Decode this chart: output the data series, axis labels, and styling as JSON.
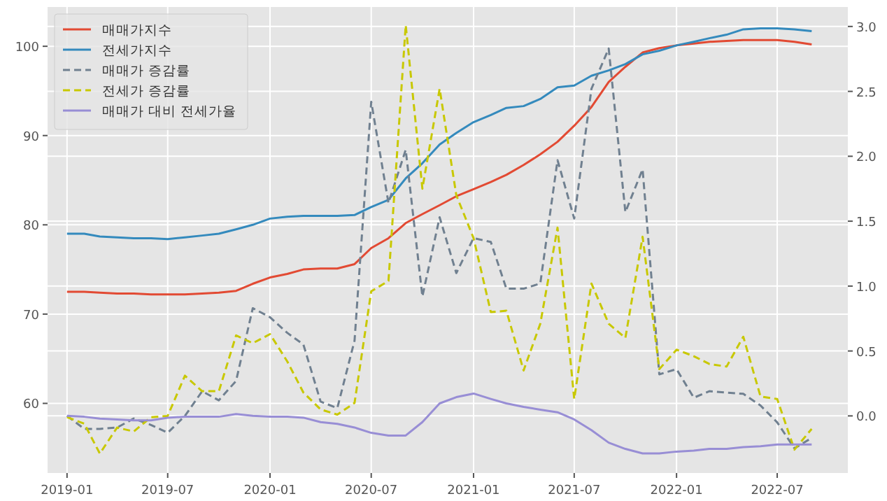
{
  "chart_data": {
    "type": "line",
    "x": [
      "2019-01",
      "2019-02",
      "2019-03",
      "2019-04",
      "2019-05",
      "2019-06",
      "2019-07",
      "2019-08",
      "2019-09",
      "2019-10",
      "2019-11",
      "2019-12",
      "2020-01",
      "2020-02",
      "2020-03",
      "2020-04",
      "2020-05",
      "2020-06",
      "2020-07",
      "2020-08",
      "2020-09",
      "2020-10",
      "2020-11",
      "2020-12",
      "2021-01",
      "2021-02",
      "2021-03",
      "2021-04",
      "2021-05",
      "2021-06",
      "2021-07",
      "2021-08",
      "2021-09",
      "2021-10",
      "2021-11",
      "2021-12",
      "2022-01",
      "2022-02",
      "2022-03",
      "2022-04",
      "2022-05",
      "2022-06",
      "2022-07",
      "2022-08",
      "2022-09"
    ],
    "xlim": [
      "2018-11-27",
      "2022-11-05"
    ],
    "xticks": [
      {
        "value": "2019-01",
        "label": "2019-01"
      },
      {
        "value": "2019-07",
        "label": "2019-07"
      },
      {
        "value": "2020-01",
        "label": "2020-01"
      },
      {
        "value": "2020-07",
        "label": "2020-07"
      },
      {
        "value": "2021-01",
        "label": "2021-01"
      },
      {
        "value": "2021-07",
        "label": "2021-07"
      },
      {
        "value": "2022-01",
        "label": "2022-01"
      },
      {
        "value": "2022-07",
        "label": "2022-07"
      }
    ],
    "ylim": [
      52.2,
      104.4
    ],
    "yticks": [
      60,
      70,
      80,
      90,
      100
    ],
    "y2lim": [
      -0.44,
      3.15
    ],
    "y2ticks": [
      {
        "value": 0,
        "label": "0.0"
      },
      {
        "value": 0.5,
        "label": "0.5"
      },
      {
        "value": 1,
        "label": "1.0"
      },
      {
        "value": 1.5,
        "label": "1.5"
      },
      {
        "value": 2,
        "label": "2.0"
      },
      {
        "value": 2.5,
        "label": "2.5"
      },
      {
        "value": 3,
        "label": "3.0"
      }
    ],
    "grid": true,
    "legend": "top left",
    "series": [
      {
        "name": "매매가지수",
        "color": "#e24a33",
        "line_style": "solid",
        "values": [
          72.5,
          72.5,
          72.4,
          72.3,
          72.3,
          72.2,
          72.2,
          72.2,
          72.3,
          72.4,
          72.6,
          73.4,
          74.1,
          74.5,
          75.0,
          75.1,
          75.1,
          75.6,
          77.4,
          78.5,
          80.2,
          81.2,
          82.2,
          83.2,
          84.0,
          84.8,
          85.6,
          86.7,
          87.9,
          89.3,
          91.1,
          93.2,
          96.0,
          97.7,
          99.3,
          99.8,
          100.1,
          100.3,
          100.5,
          100.6,
          100.7,
          100.7,
          100.7,
          100.5,
          100.2
        ]
      },
      {
        "name": "전세가지수",
        "color": "#348abd",
        "line_style": "solid",
        "values": [
          79.0,
          79.0,
          78.7,
          78.6,
          78.5,
          78.5,
          78.4,
          78.6,
          78.8,
          79.0,
          79.5,
          80.0,
          80.7,
          80.9,
          81.0,
          81.0,
          81.0,
          81.1,
          82.0,
          82.8,
          85.2,
          86.9,
          89.0,
          90.3,
          91.5,
          92.3,
          93.1,
          93.3,
          94.1,
          95.4,
          95.6,
          96.7,
          97.3,
          98.0,
          99.1,
          99.5,
          100.1,
          100.5,
          100.9,
          101.3,
          101.9,
          102.0,
          102.0,
          101.9,
          101.7
        ]
      },
      {
        "name": "매매가 증감률",
        "color": "#708090",
        "line_style": "dashed",
        "axis": "y2",
        "values": [
          0.0,
          -0.1,
          -0.1,
          -0.09,
          -0.02,
          -0.07,
          -0.13,
          0.0,
          0.19,
          0.12,
          0.27,
          0.83,
          0.76,
          0.64,
          0.55,
          0.11,
          0.06,
          0.58,
          2.42,
          1.64,
          2.05,
          0.92,
          1.53,
          1.1,
          1.37,
          1.34,
          0.98,
          0.98,
          1.02,
          1.97,
          1.52,
          2.52,
          2.83,
          1.57,
          1.9,
          0.32,
          0.36,
          0.14,
          0.19,
          0.18,
          0.17,
          0.08,
          -0.05,
          -0.25,
          -0.17
        ]
      },
      {
        "name": "전세가 증감률",
        "color": "#c8c800",
        "line_style": "dashed",
        "axis": "y2",
        "values": [
          -0.01,
          -0.06,
          -0.29,
          -0.09,
          -0.12,
          -0.01,
          0.0,
          0.31,
          0.19,
          0.19,
          0.62,
          0.56,
          0.63,
          0.42,
          0.18,
          0.05,
          0.01,
          0.1,
          0.96,
          1.04,
          3.01,
          1.75,
          2.52,
          1.7,
          1.37,
          0.8,
          0.81,
          0.35,
          0.71,
          1.45,
          0.13,
          1.02,
          0.71,
          0.6,
          1.38,
          0.36,
          0.51,
          0.46,
          0.4,
          0.38,
          0.61,
          0.15,
          0.13,
          -0.26,
          -0.1
        ]
      },
      {
        "name": "매매가 대비 전세가율",
        "color": "#988ed5",
        "line_style": "solid",
        "values": [
          58.6,
          58.5,
          58.3,
          58.2,
          58.1,
          58.1,
          58.4,
          58.5,
          58.5,
          58.5,
          58.8,
          58.6,
          58.5,
          58.5,
          58.4,
          57.9,
          57.7,
          57.3,
          56.7,
          56.4,
          56.4,
          57.9,
          60.0,
          60.7,
          61.1,
          60.5,
          60.0,
          59.6,
          59.3,
          59.0,
          58.2,
          57.0,
          55.6,
          54.9,
          54.4,
          54.4,
          54.6,
          54.7,
          54.9,
          54.9,
          55.1,
          55.2,
          55.4,
          55.4,
          55.4
        ]
      }
    ]
  }
}
